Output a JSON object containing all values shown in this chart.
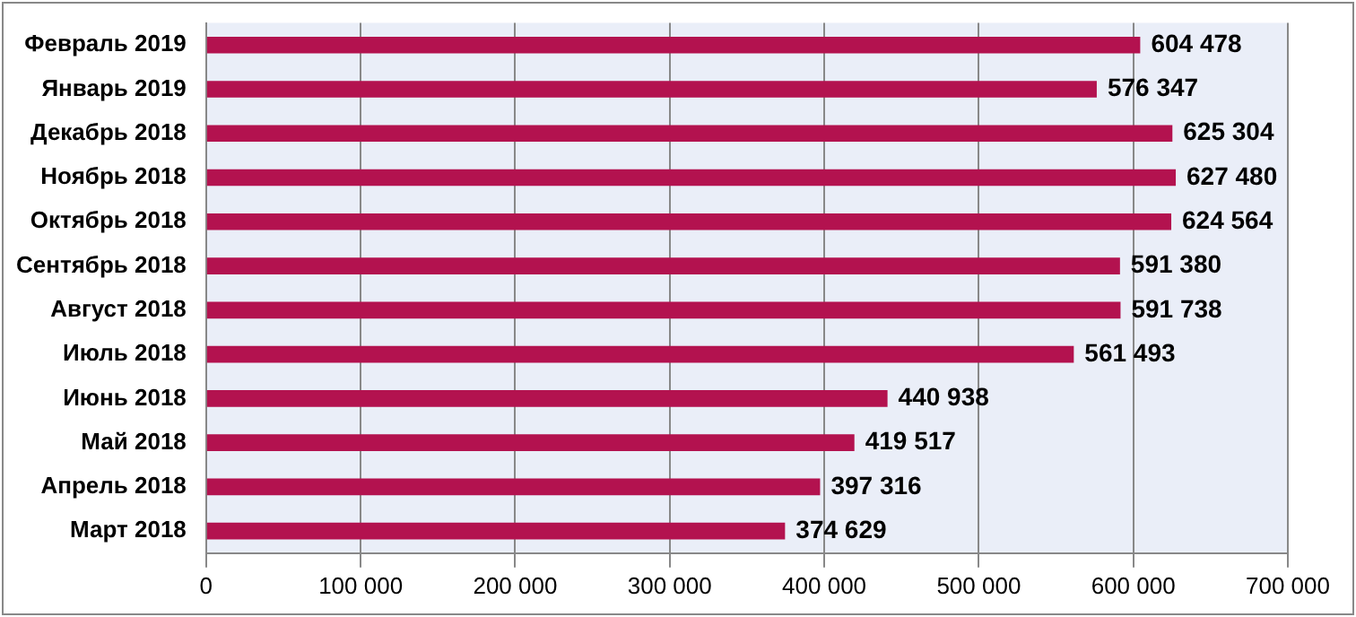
{
  "chart_data": {
    "type": "bar",
    "orientation": "horizontal",
    "categories": [
      "Февраль 2019",
      "Январь 2019",
      "Декабрь 2018",
      "Ноябрь 2018",
      "Октябрь 2018",
      "Сентябрь 2018",
      "Август 2018",
      "Июль 2018",
      "Июнь 2018",
      "Май 2018",
      "Апрель 2018",
      "Март 2018"
    ],
    "values": [
      604478,
      576347,
      625304,
      627480,
      624564,
      591380,
      591738,
      561493,
      440938,
      419517,
      397316,
      374629
    ],
    "value_labels": [
      "604 478",
      "576 347",
      "625 304",
      "627 480",
      "624 564",
      "591 380",
      "591 738",
      "561 493",
      "440 938",
      "419 517",
      "397 316",
      "374 629"
    ],
    "color": "#b3124f",
    "xlim": [
      0,
      700000
    ],
    "xticks": [
      {
        "value": 0,
        "label": "0"
      },
      {
        "value": 100000,
        "label": "100 000"
      },
      {
        "value": 200000,
        "label": "200 000"
      },
      {
        "value": 300000,
        "label": "300 000"
      },
      {
        "value": 400000,
        "label": "400 000"
      },
      {
        "value": 500000,
        "label": "500 000"
      },
      {
        "value": 600000,
        "label": "600 000"
      },
      {
        "value": 700000,
        "label": "700 000"
      }
    ],
    "grid": "x",
    "legend": false
  }
}
